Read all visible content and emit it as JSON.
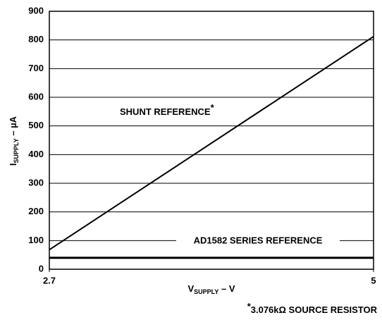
{
  "chart_data": {
    "type": "line",
    "x_label": {
      "symbol": "V",
      "subscript": "SUPPLY",
      "unit": " – V"
    },
    "y_label": {
      "symbol": "I",
      "subscript": "SUPPLY",
      "unit": " – µA"
    },
    "x": [
      2.7,
      5
    ],
    "series": [
      {
        "name": "SHUNT REFERENCE",
        "marker": "*",
        "color": "#000000",
        "values": [
          68,
          812
        ]
      },
      {
        "name": "AD1582 SERIES REFERENCE",
        "color": "#000000",
        "values": [
          40,
          40
        ]
      }
    ],
    "xlim": [
      2.7,
      5
    ],
    "xticks": [
      2.7,
      5
    ],
    "ylim": [
      0,
      900
    ],
    "yticks": [
      0,
      100,
      200,
      300,
      400,
      500,
      600,
      700,
      800,
      900
    ],
    "grid": true,
    "footnote": {
      "marker": "*",
      "text": "3.076kΩ SOURCE RESISTOR"
    }
  }
}
